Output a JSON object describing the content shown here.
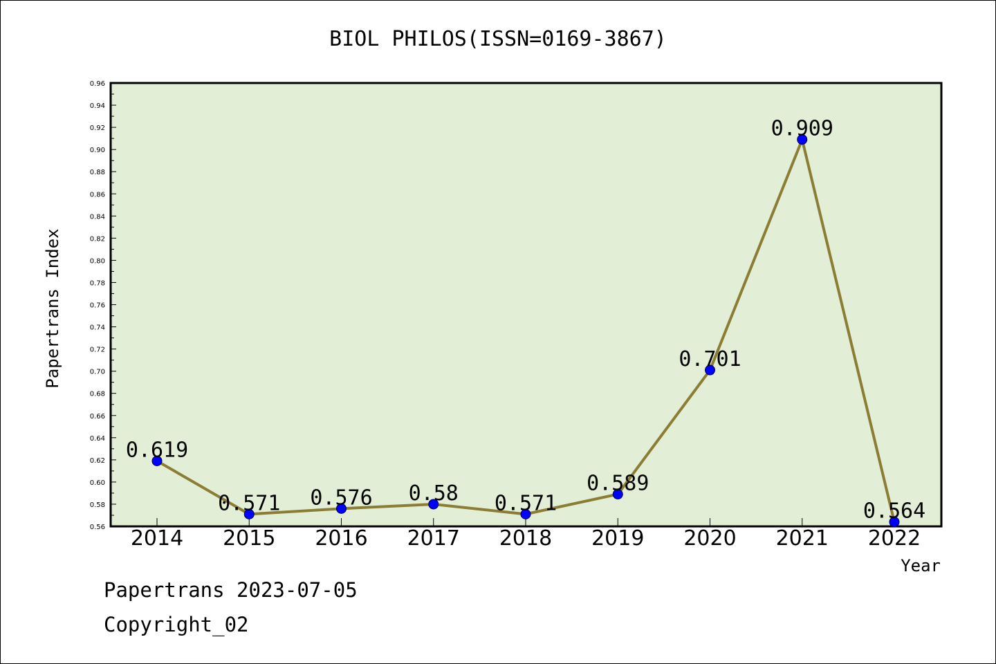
{
  "footer": {
    "date_line": "Papertrans 2023-07-05",
    "copyright_line": "Copyright_02"
  },
  "colors": {
    "plot_background": "#e2efd6",
    "line": "#8b7d33",
    "marker": "#0000ff"
  },
  "chart_data": {
    "type": "line",
    "title": "BIOL PHILOS(ISSN=0169-3867)",
    "xlabel": "Year",
    "ylabel": "Papertrans Index",
    "categories": [
      "2014",
      "2015",
      "2016",
      "2017",
      "2018",
      "2019",
      "2020",
      "2021",
      "2022"
    ],
    "series": [
      {
        "values": [
          0.619,
          0.571,
          0.576,
          0.58,
          0.571,
          0.589,
          0.701,
          0.909,
          0.564
        ],
        "data_labels": [
          "0.619",
          "0.571",
          "0.576",
          "0.58",
          "0.571",
          "0.589",
          "0.701",
          "0.909",
          "0.564"
        ]
      }
    ],
    "ylim": [
      0.56,
      0.96
    ],
    "yticks": [
      "0.56",
      "0.58",
      "0.60",
      "0.62",
      "0.64",
      "0.66",
      "0.68",
      "0.70",
      "0.72",
      "0.74",
      "0.76",
      "0.78",
      "0.80",
      "0.82",
      "0.84",
      "0.86",
      "0.88",
      "0.90",
      "0.92",
      "0.94",
      "0.96"
    ],
    "grid": false,
    "legend": "none"
  }
}
